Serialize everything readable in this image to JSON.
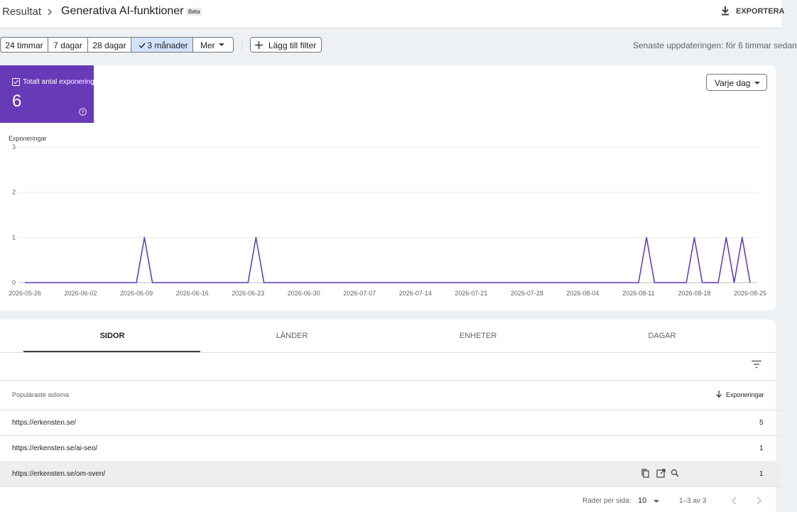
{
  "header": {
    "breadcrumb": "Resultat",
    "title": "Generativa AI-funktioner",
    "badge": "Beta",
    "export": "EXPORTERA"
  },
  "filters": {
    "ranges": [
      "24 timmar",
      "7 dagar",
      "28 dagar",
      "3 månader",
      "Mer"
    ],
    "add_filter": "Lägg till filter",
    "updated": "Senaste uppdateringen: för 6 timmar sedan"
  },
  "metric": {
    "value": "6"
  },
  "granularity": "Varje dag",
  "chart_data": {
    "type": "line",
    "y_label": "Exponeringar",
    "x": [
      "2026-05-26",
      "2026-05-27",
      "2026-05-28",
      "2026-05-29",
      "2026-05-30",
      "2026-05-31",
      "2026-06-01",
      "2026-06-02",
      "2026-06-03",
      "2026-06-04",
      "2026-06-05",
      "2026-06-06",
      "2026-06-07",
      "2026-06-08",
      "2026-06-09",
      "2026-06-10",
      "2026-06-11",
      "2026-06-12",
      "2026-06-13",
      "2026-06-14",
      "2026-06-15",
      "2026-06-16",
      "2026-06-17",
      "2026-06-18",
      "2026-06-19",
      "2026-06-20",
      "2026-06-21",
      "2026-06-22",
      "2026-06-23",
      "2026-06-24",
      "2026-06-25",
      "2026-06-26",
      "2026-06-27",
      "2026-06-28",
      "2026-06-29",
      "2026-06-30",
      "2026-07-01",
      "2026-07-02",
      "2026-07-03",
      "2026-07-04",
      "2026-07-05",
      "2026-07-06",
      "2026-07-07",
      "2026-07-08",
      "2026-07-09",
      "2026-07-10",
      "2026-07-11",
      "2026-07-12",
      "2026-07-13",
      "2026-07-14",
      "2026-07-15",
      "2026-07-16",
      "2026-07-17",
      "2026-07-18",
      "2026-07-19",
      "2026-07-20",
      "2026-07-21",
      "2026-07-22",
      "2026-07-23",
      "2026-07-24",
      "2026-07-25",
      "2026-07-26",
      "2026-07-27",
      "2026-07-28",
      "2026-07-29",
      "2026-07-30",
      "2026-07-31",
      "2026-08-01",
      "2026-08-02",
      "2026-08-03",
      "2026-08-04",
      "2026-08-05",
      "2026-08-06",
      "2026-08-07",
      "2026-08-08",
      "2026-08-09",
      "2026-08-10",
      "2026-08-11",
      "2026-08-12",
      "2026-08-13",
      "2026-08-14",
      "2026-08-15",
      "2026-08-16",
      "2026-08-17",
      "2026-08-18",
      "2026-08-19",
      "2026-08-20",
      "2026-08-21",
      "2026-08-22",
      "2026-08-23",
      "2026-08-24",
      "2026-08-25"
    ],
    "series": [
      {
        "name": "Totalt antal exponeringar",
        "color": "#5e35b1",
        "values": [
          0,
          0,
          0,
          0,
          0,
          0,
          0,
          0,
          0,
          0,
          0,
          0,
          0,
          0,
          0,
          1,
          0,
          0,
          0,
          0,
          0,
          0,
          0,
          0,
          0,
          0,
          0,
          0,
          0,
          1,
          0,
          0,
          0,
          0,
          0,
          0,
          0,
          0,
          0,
          0,
          0,
          0,
          0,
          0,
          0,
          0,
          0,
          0,
          0,
          0,
          0,
          0,
          0,
          0,
          0,
          0,
          0,
          0,
          0,
          0,
          0,
          0,
          0,
          0,
          0,
          0,
          0,
          0,
          0,
          0,
          0,
          0,
          0,
          0,
          0,
          0,
          0,
          0,
          1,
          0,
          0,
          0,
          0,
          0,
          1,
          0,
          0,
          0,
          1,
          0,
          1,
          0
        ]
      }
    ],
    "xticks": [
      "2026-05-26",
      "2026-06-02",
      "2026-06-09",
      "2026-06-16",
      "2026-06-23",
      "2026-06-30",
      "2026-07-07",
      "2026-07-14",
      "2026-07-21",
      "2026-07-28",
      "2026-08-04",
      "2026-08-11",
      "2026-08-18",
      "2026-08-25"
    ],
    "ylim": [
      0,
      3
    ],
    "yticks": [
      0,
      1,
      2,
      3
    ],
    "grid": true
  },
  "tabs": [
    "SIDOR",
    "LÄNDER",
    "ENHETER",
    "DAGAR"
  ],
  "table": {
    "columns": [
      "Populäraste sidorna",
      "Exponeringar"
    ],
    "rows": [
      [
        "https://erkensten.se/",
        "5"
      ],
      [
        "https://erkensten.se/ai-seo/",
        "1"
      ],
      [
        "https://erkensten.se/om-sven/",
        "1"
      ]
    ]
  },
  "pagination": {
    "rows_label": "Rader per sida:",
    "rows_value": "10",
    "range": "1–3 av 3"
  }
}
